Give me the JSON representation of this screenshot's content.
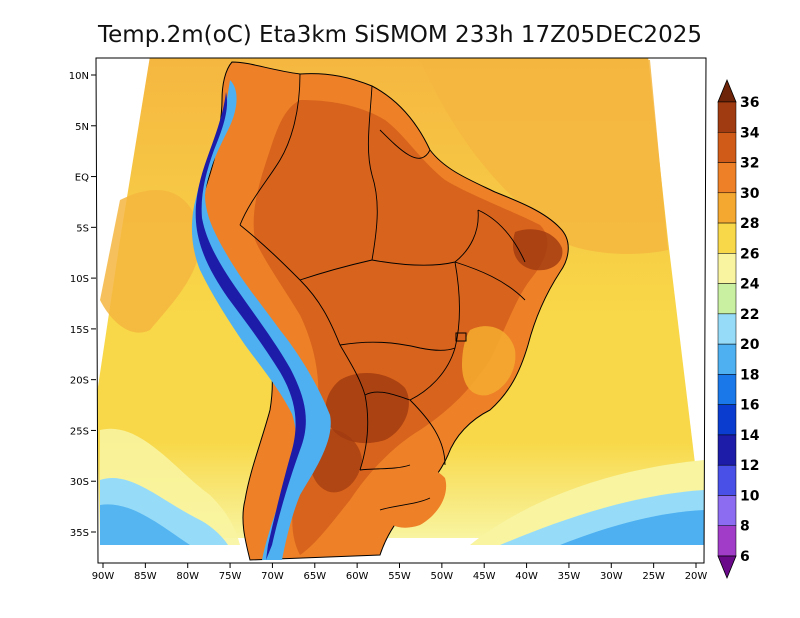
{
  "title": "Temp.2m(oC) Eta3km SiSMOM 233h 17Z05DEC2025",
  "map": {
    "lon_ticks": [
      "90W",
      "85W",
      "80W",
      "75W",
      "70W",
      "65W",
      "60W",
      "55W",
      "50W",
      "45W",
      "40W",
      "35W",
      "30W",
      "25W",
      "20W"
    ],
    "lat_ticks": [
      "10N",
      "5N",
      "EQ",
      "5S",
      "10S",
      "15S",
      "20S",
      "25S",
      "30S",
      "35S"
    ],
    "extent": {
      "lon_min": -91,
      "lon_max": -19,
      "lat_min": -38,
      "lat_max": 11
    }
  },
  "colorbar": {
    "labels": [
      "6",
      "8",
      "10",
      "12",
      "14",
      "16",
      "18",
      "20",
      "22",
      "24",
      "26",
      "28",
      "30",
      "32",
      "34",
      "36"
    ],
    "colors": [
      "#6a0a8a",
      "#a03cc8",
      "#8c6cf0",
      "#4850e8",
      "#1c1ca8",
      "#0a3cd0",
      "#1a78e8",
      "#4eb0f0",
      "#96dcf8",
      "#c8f0a0",
      "#f8f4a0",
      "#f8d848",
      "#f4a830",
      "#ee8028",
      "#d05a18",
      "#a03a10",
      "#6e2408"
    ]
  },
  "palette": {
    "ocean_warm": "#f5b640",
    "ocean_mid": "#f8d848",
    "ocean_cool": "#f8f4a0",
    "ocean_cold": "#96dcf8",
    "ocean_colder": "#4eb0f0",
    "land_hot": "#d05a18",
    "land_warm": "#ee8028",
    "land_hotter": "#a03a10",
    "andes_cold": "#1c1ca8",
    "andes_mid": "#4eb0f0"
  }
}
